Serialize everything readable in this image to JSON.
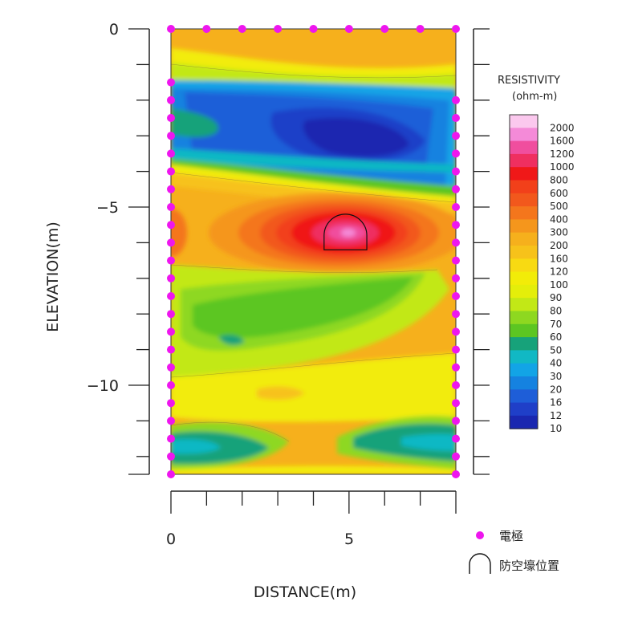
{
  "chart_data": {
    "type": "heatmap",
    "title": "",
    "xlabel": "DISTANCE(m)",
    "ylabel": "ELEVATION(m)",
    "xlim": [
      0,
      8
    ],
    "ylim": [
      -12.5,
      0
    ],
    "x_tick_labels": [
      "0",
      "5"
    ],
    "y_tick_labels": [
      "0",
      "−5",
      "−10"
    ],
    "colorbar": {
      "title": "RESISTIVITY",
      "unit": "(ohm-m)",
      "levels": [
        "2000",
        "1600",
        "1200",
        "1000",
        "800",
        "600",
        "500",
        "400",
        "300",
        "200",
        "160",
        "120",
        "100",
        "90",
        "80",
        "70",
        "60",
        "50",
        "40",
        "30",
        "20",
        "16",
        "12",
        "10"
      ],
      "colors": [
        "#fbc8ee",
        "#f48ad8",
        "#f04e9e",
        "#ef2f60",
        "#f01818",
        "#f2401a",
        "#f2581c",
        "#f4761c",
        "#f5961c",
        "#f6b01c",
        "#f7c21a",
        "#f8da12",
        "#f2ec08",
        "#e4ee0a",
        "#c2e816",
        "#8ed820",
        "#5cc622",
        "#17a27a",
        "#11b8c4",
        "#12a4e6",
        "#1582e0",
        "#1e5ed8",
        "#1f3fc8",
        "#1a27b0"
      ]
    },
    "electrodes": {
      "top_x": [
        0,
        1,
        2,
        3,
        4,
        5,
        6,
        7,
        8
      ],
      "left_y": [
        -1.5,
        -2,
        -2.5,
        -3,
        -3.5,
        -4,
        -4.5,
        -5,
        -5.5,
        -6,
        -6.5,
        -7,
        -7.5,
        -8,
        -8.5,
        -9,
        -9.5,
        -10,
        -10.5,
        -11,
        -11.5,
        -12,
        -12.5
      ],
      "right_y": [
        -2,
        -2.5,
        -3,
        -3.5,
        -4,
        -4.5,
        -5,
        -5.5,
        -6,
        -6.5,
        -7,
        -7.5,
        -8,
        -8.5,
        -9,
        -9.5,
        -10,
        -10.5,
        -11,
        -11.5,
        -12,
        -12.5
      ]
    },
    "shelter": {
      "x_center": 4.9,
      "y_bottom": -6.2,
      "half_width": 0.6,
      "height": 1.0
    },
    "legend": [
      {
        "symbol": "dot",
        "label": "電極"
      },
      {
        "symbol": "arch",
        "label": "防空壕位置"
      }
    ]
  }
}
